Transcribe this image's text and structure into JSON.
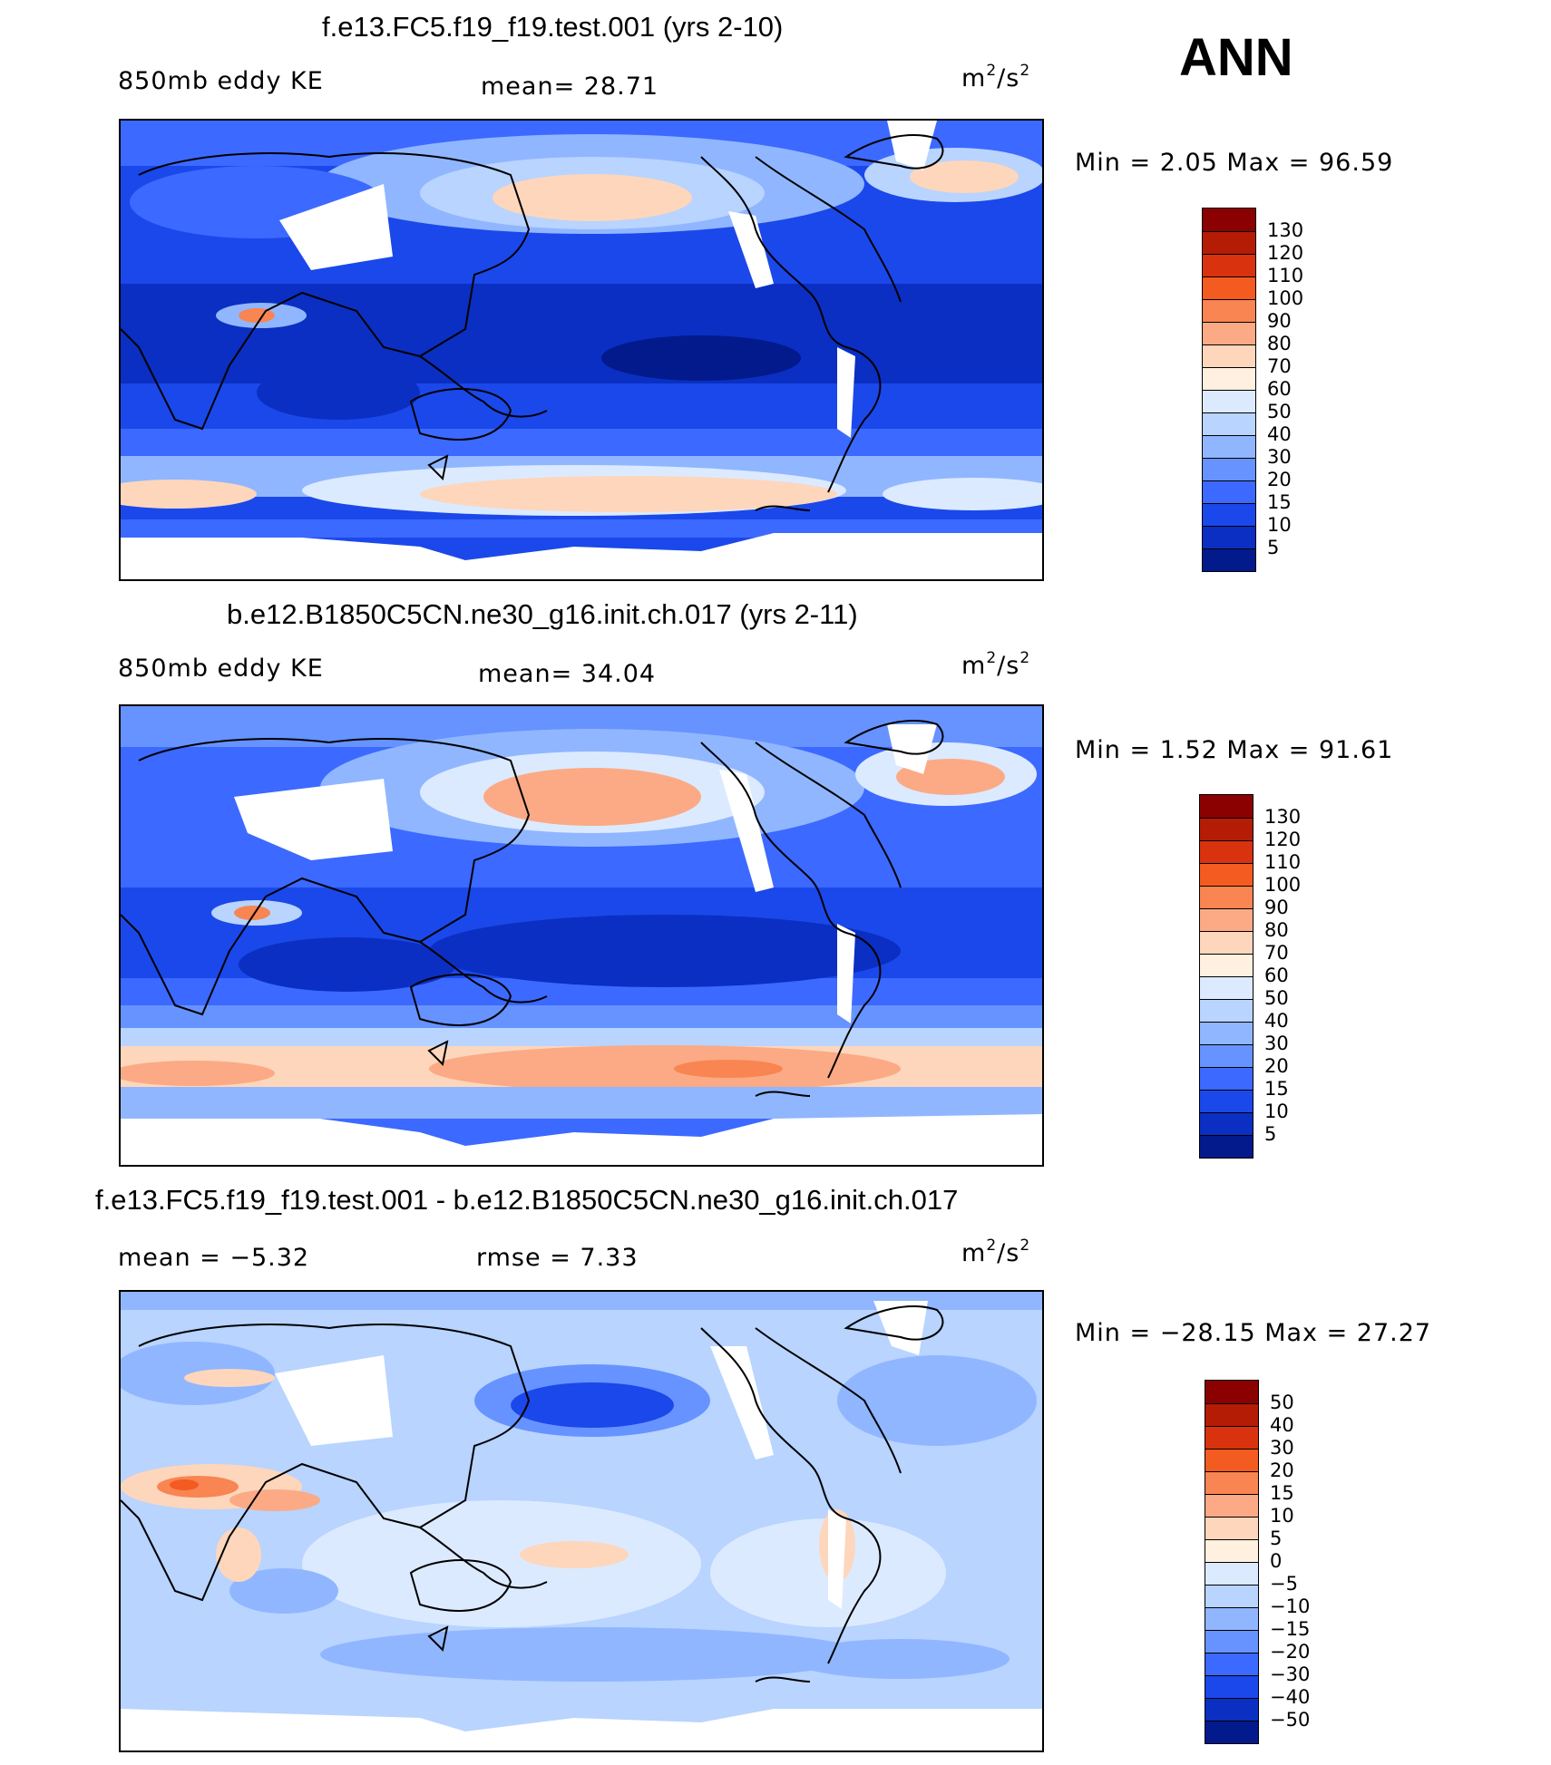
{
  "season": "ANN",
  "panels": [
    {
      "id": "p1",
      "title": "f.e13.FC5.f19_f19.test.001 (yrs 2-10)",
      "left_label": "850mb eddy KE",
      "center_label": "mean=  28.71",
      "units": "m2/s2",
      "stats": "Min  =    2.05  Max  =   96.59",
      "colorbar": {
        "levels": [
          "130",
          "120",
          "110",
          "100",
          "90",
          "80",
          "70",
          "60",
          "50",
          "40",
          "30",
          "20",
          "15",
          "10",
          "5"
        ],
        "colors": [
          "#8b0000",
          "#b51c05",
          "#d9320e",
          "#f35b21",
          "#f88552",
          "#fbaa85",
          "#fdd6bc",
          "#fff0e0",
          "#dceaff",
          "#b8d4ff",
          "#90b6ff",
          "#6693ff",
          "#3c69ff",
          "#1b48ea",
          "#0a2fc2",
          "#021a8c"
        ]
      }
    },
    {
      "id": "p2",
      "title": "b.e12.B1850C5CN.ne30_g16.init.ch.017 (yrs 2-11)",
      "left_label": "850mb eddy KE",
      "center_label": "mean=  34.04",
      "units": "m2/s2",
      "stats": "Min  =    1.52  Max  =   91.61",
      "colorbar": {
        "levels": [
          "130",
          "120",
          "110",
          "100",
          "90",
          "80",
          "70",
          "60",
          "50",
          "40",
          "30",
          "20",
          "15",
          "10",
          "5"
        ],
        "colors": [
          "#8b0000",
          "#b51c05",
          "#d9320e",
          "#f35b21",
          "#f88552",
          "#fbaa85",
          "#fdd6bc",
          "#fff0e0",
          "#dceaff",
          "#b8d4ff",
          "#90b6ff",
          "#6693ff",
          "#3c69ff",
          "#1b48ea",
          "#0a2fc2",
          "#021a8c"
        ]
      }
    },
    {
      "id": "p3",
      "title": "f.e13.FC5.f19_f19.test.001 - b.e12.B1850C5CN.ne30_g16.init.ch.017",
      "left_label": "mean  =   −5.32",
      "center_label": "rmse  =     7.33",
      "units": "m2/s2",
      "stats": "Min  = −28.15  Max  =   27.27",
      "colorbar": {
        "levels": [
          "50",
          "40",
          "30",
          "20",
          "15",
          "10",
          "5",
          "0",
          "−5",
          "−10",
          "−15",
          "−20",
          "−30",
          "−40",
          "−50"
        ],
        "colors": [
          "#8b0000",
          "#b51c05",
          "#d9320e",
          "#f35b21",
          "#f88552",
          "#fbaa85",
          "#fdd6bc",
          "#fff0e0",
          "#dceaff",
          "#b8d4ff",
          "#90b6ff",
          "#6693ff",
          "#3c69ff",
          "#1b48ea",
          "#0a2fc2",
          "#021a8c"
        ]
      }
    }
  ]
}
